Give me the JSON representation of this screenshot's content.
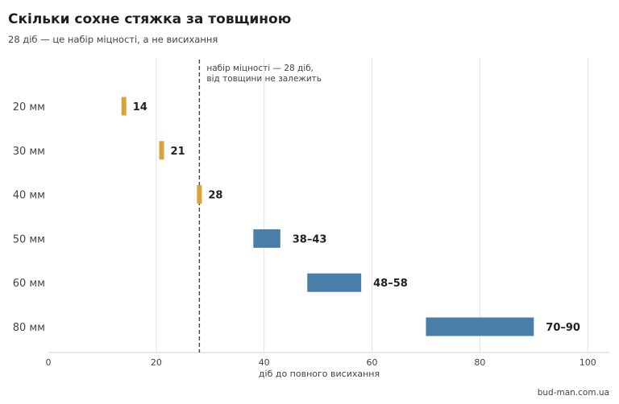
{
  "chart_data": {
    "type": "bar",
    "orientation": "horizontal-range",
    "title": "Скільки сохне стяжка за товщиною",
    "subtitle": "28 діб — це набір міцності, а не висихання",
    "xlabel": "діб до повного висихання",
    "ylabel": "",
    "xlim": [
      0,
      104
    ],
    "xticks": [
      0,
      20,
      40,
      60,
      80,
      100
    ],
    "grid": "vertical",
    "categories": [
      "20 мм",
      "30 мм",
      "40 мм",
      "50 мм",
      "60 мм",
      "80 мм"
    ],
    "ranges": [
      {
        "start": 14,
        "end": 14,
        "label": "14",
        "color": "#d9a23a"
      },
      {
        "start": 21,
        "end": 21,
        "label": "21",
        "color": "#d9a23a"
      },
      {
        "start": 28,
        "end": 28,
        "label": "28",
        "color": "#d9a23a"
      },
      {
        "start": 38,
        "end": 43,
        "label": "38–43",
        "color": "#4a7ea8"
      },
      {
        "start": 48,
        "end": 58,
        "label": "48–58",
        "color": "#4a7ea8"
      },
      {
        "start": 70,
        "end": 90,
        "label": "70–90",
        "color": "#4a7ea8"
      }
    ],
    "reference_line": {
      "x": 28,
      "style": "dashed",
      "annotation": [
        "набір міцності — 28 діб,",
        "від товщини не залежить"
      ]
    }
  },
  "source": "bud-man.com.ua"
}
